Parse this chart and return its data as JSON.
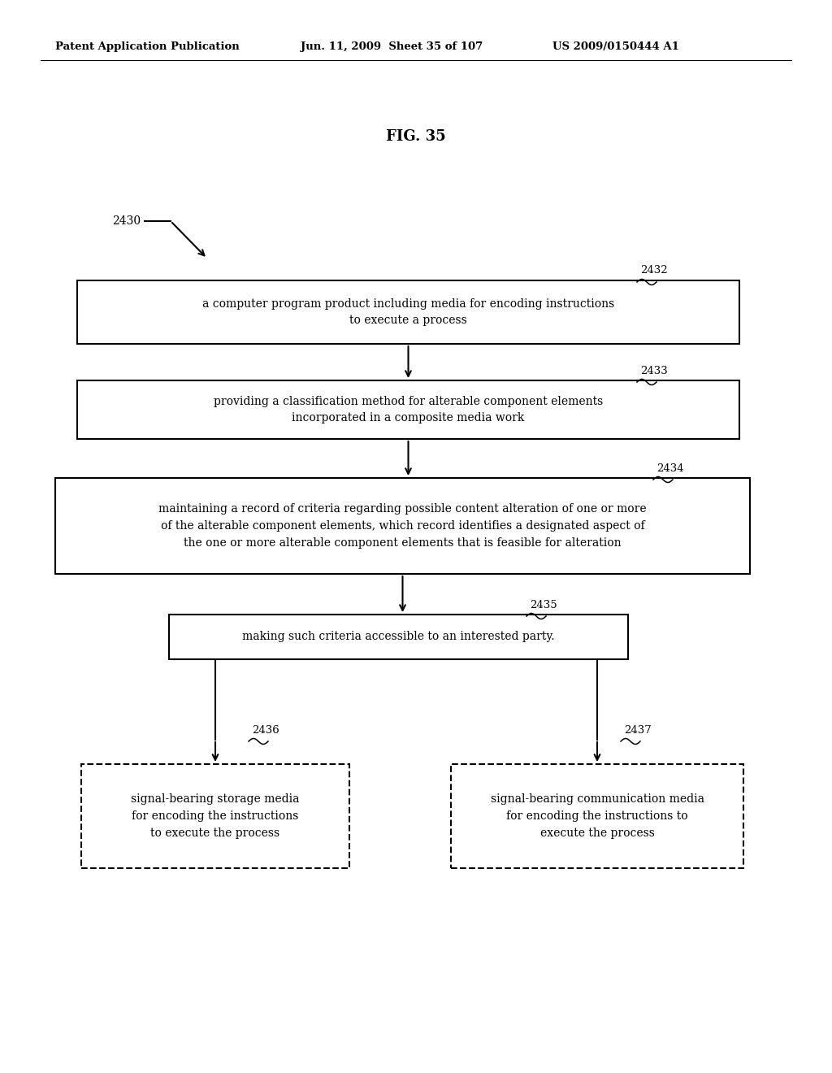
{
  "bg_color": "#ffffff",
  "header_left": "Patent Application Publication",
  "header_mid": "Jun. 11, 2009  Sheet 35 of 107",
  "header_right": "US 2009/0150444 A1",
  "fig_label": "FIG. 35",
  "ref_2430": "2430",
  "ref_2432": "2432",
  "ref_2433": "2433",
  "ref_2434": "2434",
  "ref_2435": "2435",
  "ref_2436": "2436",
  "ref_2437": "2437",
  "box1_text": "a computer program product including media for encoding instructions\nto execute a process",
  "box2_text": "providing a classification method for alterable component elements\nincorporated in a composite media work",
  "box3_text": "maintaining a record of criteria regarding possible content alteration of one or more\nof the alterable component elements, which record identifies a designated aspect of\nthe one or more alterable component elements that is feasible for alteration",
  "box4_text": "making such criteria accessible to an interested party.",
  "box5_text": "signal-bearing storage media\nfor encoding the instructions\nto execute the process",
  "box6_text": "signal-bearing communication media\nfor encoding the instructions to\nexecute the process"
}
